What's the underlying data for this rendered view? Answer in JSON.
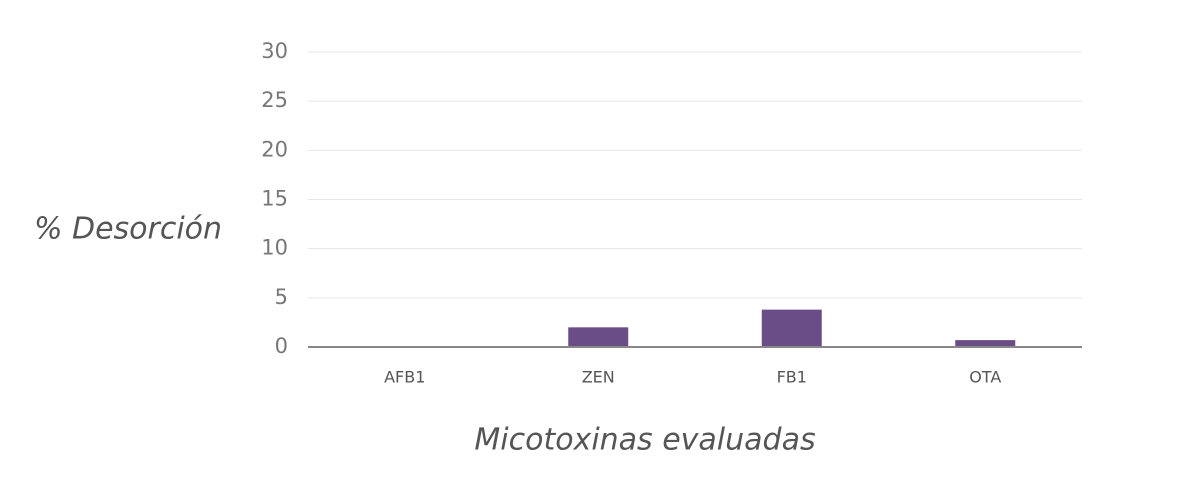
{
  "chart_data": {
    "type": "bar",
    "y_label": "% Desorción",
    "x_label": "Micotoxinas evaluadas",
    "categories": [
      "AFB1",
      "ZEN",
      "FB1",
      "OTA"
    ],
    "values": [
      0,
      2.0,
      3.8,
      0.7
    ],
    "color": "#6a4c86",
    "ylim": [
      0,
      30
    ],
    "yticks": [
      0,
      5,
      10,
      15,
      20,
      25,
      30
    ],
    "grid": true
  }
}
